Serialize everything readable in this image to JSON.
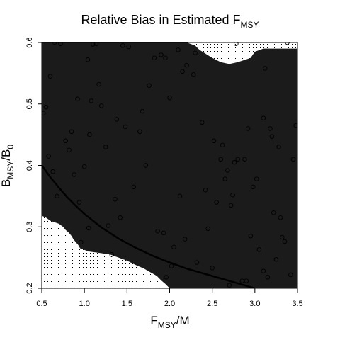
{
  "chart_data": {
    "type": "heatmap",
    "title": "Relative Bias in Estimated F",
    "title_subscript": "MSY",
    "xlabel": "F",
    "xlabel_subscript": "MSY",
    "xlabel_suffix": "/M",
    "ylabel": "B",
    "ylabel_subscript": "MSY",
    "ylabel_mid": "/B",
    "ylabel_subscript2": "0",
    "xlim": [
      0.5,
      3.5
    ],
    "ylim": [
      0.2,
      0.6
    ],
    "x_ticks": [
      0.5,
      1.0,
      1.5,
      2.0,
      2.5,
      3.0,
      3.5
    ],
    "x_tick_labels": [
      "0.5",
      "1.0",
      "1.5",
      "2.0",
      "2.5",
      "3.0",
      "3.5"
    ],
    "y_ticks": [
      0.2,
      0.3,
      0.4,
      0.5,
      0.6
    ],
    "y_tick_labels": [
      "0.2",
      "0.3",
      "0.4",
      "0.5",
      "0.6"
    ],
    "grid": false,
    "legend": "none",
    "region_colors": {
      "dark": "#1b1b1b",
      "dotted_background": "#ffffff",
      "dots": "#000000"
    },
    "dark_region_top_boundary": [
      [
        0.5,
        0.6
      ],
      [
        2.2,
        0.6
      ],
      [
        2.3,
        0.595
      ],
      [
        2.35,
        0.588
      ],
      [
        2.5,
        0.575
      ],
      [
        2.6,
        0.568
      ],
      [
        2.7,
        0.565
      ],
      [
        2.8,
        0.568
      ],
      [
        2.95,
        0.575
      ],
      [
        3.0,
        0.585
      ],
      [
        3.1,
        0.59
      ],
      [
        3.5,
        0.59
      ]
    ],
    "dark_region_bottom_boundary": [
      [
        0.5,
        0.318
      ],
      [
        0.55,
        0.315
      ],
      [
        0.6,
        0.31
      ],
      [
        0.7,
        0.305
      ],
      [
        0.75,
        0.3
      ],
      [
        0.78,
        0.295
      ],
      [
        0.82,
        0.29
      ],
      [
        0.85,
        0.285
      ],
      [
        0.87,
        0.28
      ],
      [
        0.9,
        0.275
      ],
      [
        0.93,
        0.27
      ],
      [
        0.95,
        0.265
      ],
      [
        1.05,
        0.26
      ],
      [
        1.15,
        0.258
      ],
      [
        1.3,
        0.255
      ],
      [
        1.4,
        0.25
      ],
      [
        1.5,
        0.245
      ],
      [
        1.6,
        0.238
      ],
      [
        1.7,
        0.232
      ],
      [
        1.75,
        0.228
      ],
      [
        1.8,
        0.224
      ],
      [
        1.85,
        0.22
      ],
      [
        1.9,
        0.213
      ],
      [
        1.95,
        0.207
      ],
      [
        2.0,
        0.2
      ]
    ],
    "curve": [
      [
        0.5,
        0.4
      ],
      [
        0.6,
        0.381
      ],
      [
        0.7,
        0.364
      ],
      [
        0.8,
        0.348
      ],
      [
        0.9,
        0.334
      ],
      [
        1.0,
        0.321
      ],
      [
        1.2,
        0.299
      ],
      [
        1.4,
        0.281
      ],
      [
        1.6,
        0.266
      ],
      [
        1.8,
        0.253
      ],
      [
        2.0,
        0.242
      ],
      [
        2.2,
        0.232
      ],
      [
        2.4,
        0.224
      ],
      [
        2.6,
        0.216
      ],
      [
        2.8,
        0.208
      ],
      [
        3.0,
        0.2
      ]
    ],
    "points": [
      [
        0.52,
        0.485
      ],
      [
        0.55,
        0.495
      ],
      [
        0.58,
        0.415
      ],
      [
        0.6,
        0.545
      ],
      [
        0.63,
        0.39
      ],
      [
        0.65,
        0.6
      ],
      [
        0.72,
        0.598
      ],
      [
        0.78,
        0.44
      ],
      [
        0.82,
        0.425
      ],
      [
        0.85,
        0.455
      ],
      [
        0.88,
        0.385
      ],
      [
        0.92,
        0.508
      ],
      [
        0.94,
        0.34
      ],
      [
        0.96,
        0.275
      ],
      [
        1.0,
        0.398
      ],
      [
        1.04,
        0.572
      ],
      [
        1.05,
        0.298
      ],
      [
        1.06,
        0.45
      ],
      [
        1.08,
        0.505
      ],
      [
        1.1,
        0.597
      ],
      [
        1.14,
        0.598
      ],
      [
        1.17,
        0.532
      ],
      [
        1.2,
        0.497
      ],
      [
        1.25,
        0.43
      ],
      [
        1.28,
        0.302
      ],
      [
        1.32,
        0.255
      ],
      [
        1.36,
        0.345
      ],
      [
        1.38,
        0.475
      ],
      [
        1.42,
        0.315
      ],
      [
        1.45,
        0.595
      ],
      [
        1.48,
        0.463
      ],
      [
        1.52,
        0.593
      ],
      [
        1.58,
        0.365
      ],
      [
        1.65,
        0.455
      ],
      [
        1.68,
        0.488
      ],
      [
        1.72,
        0.4
      ],
      [
        1.76,
        0.53
      ],
      [
        1.82,
        0.575
      ],
      [
        1.86,
        0.293
      ],
      [
        1.9,
        0.58
      ],
      [
        1.93,
        0.29
      ],
      [
        1.95,
        0.575
      ],
      [
        1.96,
        0.218
      ],
      [
        2.0,
        0.51
      ],
      [
        2.02,
        0.236
      ],
      [
        2.05,
        0.267
      ],
      [
        2.1,
        0.588
      ],
      [
        2.12,
        0.35
      ],
      [
        2.15,
        0.553
      ],
      [
        2.18,
        0.28
      ],
      [
        2.2,
        0.563
      ],
      [
        2.28,
        0.548
      ],
      [
        2.3,
        0.583
      ],
      [
        2.32,
        0.242
      ],
      [
        2.38,
        0.47
      ],
      [
        2.42,
        0.36
      ],
      [
        2.45,
        0.297
      ],
      [
        2.5,
        0.233
      ],
      [
        2.52,
        0.44
      ],
      [
        2.55,
        0.34
      ],
      [
        2.6,
        0.41
      ],
      [
        2.62,
        0.433
      ],
      [
        2.65,
        0.378
      ],
      [
        2.68,
        0.392
      ],
      [
        2.7,
        0.205
      ],
      [
        2.72,
        0.335
      ],
      [
        2.74,
        0.352
      ],
      [
        2.76,
        0.405
      ],
      [
        2.8,
        0.41
      ],
      [
        2.85,
        0.212
      ],
      [
        2.88,
        0.41
      ],
      [
        2.9,
        0.212
      ],
      [
        2.92,
        0.46
      ],
      [
        2.95,
        0.285
      ],
      [
        2.98,
        0.365
      ],
      [
        3.02,
        0.378
      ],
      [
        3.05,
        0.263
      ],
      [
        3.1,
        0.228
      ],
      [
        3.12,
        0.558
      ],
      [
        3.15,
        0.218
      ],
      [
        3.2,
        0.447
      ],
      [
        3.22,
        0.323
      ],
      [
        3.25,
        0.247
      ],
      [
        3.28,
        0.43
      ],
      [
        3.3,
        0.315
      ],
      [
        3.32,
        0.283
      ],
      [
        3.35,
        0.276
      ],
      [
        3.38,
        0.6
      ],
      [
        3.42,
        0.222
      ],
      [
        3.45,
        0.41
      ],
      [
        3.48,
        0.465
      ],
      [
        3.1,
        0.477
      ],
      [
        3.18,
        0.46
      ],
      [
        2.78,
        0.598
      ],
      [
        0.68,
        0.35
      ]
    ]
  }
}
